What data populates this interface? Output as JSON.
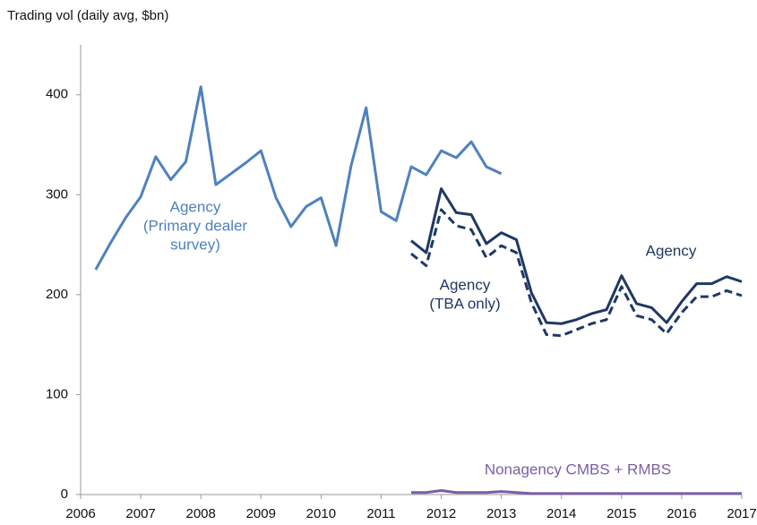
{
  "chart_data": {
    "type": "line",
    "title": "Trading vol (daily avg, $bn)",
    "xlim": [
      2006,
      2017
    ],
    "xticks": [
      2006,
      2007,
      2008,
      2009,
      2010,
      2011,
      2012,
      2013,
      2014,
      2015,
      2016,
      2017
    ],
    "ylim": [
      0,
      450
    ],
    "yticks": [
      0,
      100,
      200,
      300,
      400
    ],
    "series": [
      {
        "label": [
          "Agency",
          "(Primary dealer",
          "survey)"
        ],
        "color": "#4f81bd",
        "dash": false,
        "x": [
          2006.25,
          2006.5,
          2006.75,
          2007,
          2007.25,
          2007.5,
          2007.75,
          2008,
          2008.25,
          2008.5,
          2008.75,
          2009,
          2009.25,
          2009.5,
          2009.75,
          2010,
          2010.25,
          2010.5,
          2010.75,
          2011,
          2011.25,
          2011.5,
          2011.75,
          2012,
          2012.25,
          2012.5,
          2012.75,
          2013
        ],
        "values": [
          225,
          252,
          277,
          298,
          338,
          315,
          333,
          408,
          310,
          321,
          332,
          344,
          297,
          268,
          288,
          297,
          249,
          329,
          387,
          283,
          274,
          328,
          320,
          344,
          337,
          353,
          328,
          321
        ]
      },
      {
        "label": [
          "Agency"
        ],
        "color": "#1f3864",
        "dash": false,
        "x": [
          2011.5,
          2011.75,
          2012,
          2012.25,
          2012.5,
          2012.75,
          2013,
          2013.25,
          2013.5,
          2013.75,
          2014,
          2014.25,
          2014.5,
          2014.75,
          2015,
          2015.25,
          2015.5,
          2015.75,
          2016,
          2016.25,
          2016.5,
          2016.75,
          2017
        ],
        "values": [
          254,
          242,
          306,
          282,
          280,
          251,
          262,
          255,
          202,
          172,
          171,
          175,
          181,
          185,
          219,
          191,
          187,
          172,
          193,
          211,
          211,
          218,
          213
        ]
      },
      {
        "label": [
          "Agency",
          "(TBA only)"
        ],
        "color": "#1f3864",
        "dash": true,
        "x": [
          2011.5,
          2011.75,
          2012,
          2012.25,
          2012.5,
          2012.75,
          2013,
          2013.25,
          2013.5,
          2013.75,
          2014,
          2014.25,
          2014.5,
          2014.75,
          2015,
          2015.25,
          2015.5,
          2015.75,
          2016,
          2016.25,
          2016.5,
          2016.75,
          2017
        ],
        "values": [
          241,
          229,
          285,
          269,
          265,
          237,
          249,
          242,
          192,
          160,
          159,
          165,
          171,
          175,
          208,
          179,
          175,
          161,
          182,
          198,
          198,
          204,
          199
        ]
      },
      {
        "label": [
          "Nonagency CMBS + RMBS"
        ],
        "color": "#7b5ea7",
        "dash": false,
        "x": [
          2011.5,
          2011.75,
          2012,
          2012.25,
          2012.5,
          2012.75,
          2013,
          2013.25,
          2013.5,
          2013.75,
          2014,
          2014.25,
          2014.5,
          2014.75,
          2015,
          2015.25,
          2015.5,
          2015.75,
          2016,
          2016.25,
          2016.5,
          2016.75,
          2017
        ],
        "values": [
          2,
          2,
          4,
          2,
          2,
          2,
          3,
          2,
          1,
          1,
          1,
          1,
          1,
          1,
          1,
          1,
          1,
          1,
          1,
          1,
          1,
          1,
          1
        ]
      }
    ]
  }
}
